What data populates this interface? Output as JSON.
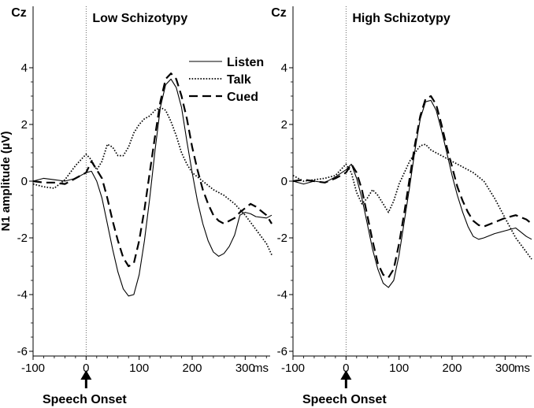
{
  "chart_data": [
    {
      "type": "line",
      "title": "Low Schizotypy",
      "electrode": "Cz",
      "xlabel": "ms",
      "ylabel": "N1 amplitude (µV)",
      "xlim": [
        -100,
        350
      ],
      "ylim": [
        -6.3,
        5
      ],
      "x_ticks": [
        -100,
        0,
        100,
        200,
        300
      ],
      "y_ticks": [
        -6,
        -4,
        -2,
        0,
        2,
        4
      ],
      "annotation": "Speech Onset",
      "legend": {
        "position": "top-right",
        "entries": [
          "Listen",
          "Talk",
          "Cued"
        ]
      },
      "series": [
        {
          "name": "Listen",
          "style": "solid",
          "x": [
            -100,
            -80,
            -60,
            -40,
            -20,
            0,
            10,
            20,
            30,
            40,
            50,
            60,
            70,
            80,
            90,
            100,
            110,
            120,
            130,
            140,
            150,
            160,
            170,
            180,
            190,
            200,
            210,
            220,
            230,
            240,
            250,
            260,
            270,
            280,
            290,
            300,
            310,
            320,
            340,
            350
          ],
          "y": [
            0.0,
            0.1,
            0.05,
            0.0,
            0.1,
            0.3,
            0.35,
            0.0,
            -0.6,
            -1.5,
            -2.4,
            -3.2,
            -3.8,
            -4.05,
            -4.0,
            -3.3,
            -2.1,
            -0.6,
            1.1,
            2.6,
            3.4,
            3.6,
            3.3,
            2.6,
            1.4,
            0.3,
            -0.7,
            -1.5,
            -2.1,
            -2.5,
            -2.65,
            -2.55,
            -2.3,
            -1.9,
            -1.2,
            -1.1,
            -1.15,
            -1.25,
            -1.3,
            -1.2
          ]
        },
        {
          "name": "Talk",
          "style": "dotted",
          "x": [
            -100,
            -80,
            -60,
            -40,
            -20,
            0,
            10,
            20,
            30,
            40,
            50,
            60,
            70,
            80,
            90,
            100,
            110,
            120,
            130,
            140,
            150,
            160,
            170,
            180,
            190,
            200,
            220,
            240,
            260,
            280,
            300,
            320,
            340,
            350
          ],
          "y": [
            -0.1,
            -0.2,
            -0.25,
            0.05,
            0.55,
            0.95,
            0.75,
            0.4,
            0.7,
            1.3,
            1.2,
            0.9,
            0.9,
            1.2,
            1.7,
            2.0,
            2.2,
            2.3,
            2.5,
            2.6,
            2.5,
            2.1,
            1.6,
            1.0,
            0.6,
            0.3,
            0.0,
            -0.3,
            -0.5,
            -0.8,
            -1.2,
            -1.7,
            -2.2,
            -2.6
          ]
        },
        {
          "name": "Cued",
          "style": "dashed",
          "x": [
            -100,
            -80,
            -60,
            -40,
            -20,
            0,
            10,
            20,
            30,
            40,
            50,
            60,
            70,
            80,
            90,
            100,
            110,
            120,
            130,
            140,
            150,
            160,
            170,
            180,
            190,
            200,
            210,
            220,
            230,
            240,
            250,
            260,
            270,
            280,
            290,
            300,
            310,
            320,
            340,
            350
          ],
          "y": [
            0.0,
            -0.05,
            -0.05,
            -0.1,
            0.1,
            0.3,
            0.7,
            0.4,
            0.1,
            -0.6,
            -1.4,
            -2.1,
            -2.7,
            -3.0,
            -2.9,
            -2.1,
            -1.0,
            0.3,
            1.6,
            2.8,
            3.6,
            3.8,
            3.6,
            3.0,
            2.2,
            1.2,
            0.4,
            -0.3,
            -0.8,
            -1.2,
            -1.4,
            -1.5,
            -1.4,
            -1.3,
            -1.1,
            -0.95,
            -0.8,
            -0.9,
            -1.2,
            -1.5
          ]
        }
      ]
    },
    {
      "type": "line",
      "title": "High Schizotypy",
      "electrode": "Cz",
      "xlabel": "ms",
      "ylabel": "",
      "xlim": [
        -100,
        350
      ],
      "ylim": [
        -6.3,
        5
      ],
      "x_ticks": [
        -100,
        0,
        100,
        200,
        300
      ],
      "y_ticks": [
        -6,
        -4,
        -2,
        0,
        2,
        4
      ],
      "annotation": "Speech Onset",
      "legend": {
        "position": "",
        "entries": []
      },
      "series": [
        {
          "name": "Listen",
          "style": "solid",
          "x": [
            -100,
            -80,
            -60,
            -40,
            -20,
            0,
            10,
            20,
            30,
            40,
            50,
            60,
            70,
            80,
            90,
            100,
            110,
            120,
            130,
            140,
            150,
            160,
            170,
            180,
            190,
            200,
            210,
            220,
            230,
            240,
            250,
            260,
            280,
            300,
            320,
            340,
            350
          ],
          "y": [
            0.0,
            -0.1,
            0.0,
            -0.05,
            0.15,
            0.4,
            0.6,
            0.1,
            -0.6,
            -1.5,
            -2.4,
            -3.1,
            -3.6,
            -3.75,
            -3.5,
            -2.6,
            -1.4,
            -0.2,
            1.1,
            2.2,
            2.8,
            2.85,
            2.5,
            1.8,
            1.0,
            0.2,
            -0.5,
            -1.1,
            -1.6,
            -1.95,
            -2.05,
            -2.0,
            -1.85,
            -1.75,
            -1.65,
            -1.95,
            -2.05
          ]
        },
        {
          "name": "Talk",
          "style": "dotted",
          "x": [
            -100,
            -80,
            -60,
            -40,
            -20,
            0,
            10,
            20,
            30,
            40,
            50,
            60,
            70,
            80,
            90,
            100,
            110,
            120,
            130,
            140,
            150,
            160,
            170,
            180,
            190,
            200,
            220,
            240,
            260,
            280,
            300,
            320,
            340,
            350
          ],
          "y": [
            0.2,
            0.0,
            0.05,
            0.1,
            0.2,
            0.6,
            0.3,
            -0.4,
            -0.8,
            -0.6,
            -0.3,
            -0.5,
            -0.8,
            -1.1,
            -0.7,
            -0.1,
            0.3,
            0.7,
            1.0,
            1.25,
            1.3,
            1.1,
            1.0,
            0.9,
            0.8,
            0.7,
            0.5,
            0.3,
            0.0,
            -0.6,
            -1.3,
            -2.0,
            -2.5,
            -2.75
          ]
        },
        {
          "name": "Cued",
          "style": "dashed",
          "x": [
            -100,
            -80,
            -60,
            -40,
            -20,
            0,
            10,
            20,
            30,
            40,
            50,
            60,
            70,
            80,
            90,
            100,
            110,
            120,
            130,
            140,
            150,
            160,
            170,
            180,
            190,
            200,
            210,
            220,
            230,
            240,
            250,
            260,
            280,
            300,
            320,
            340,
            350
          ],
          "y": [
            0.0,
            0.05,
            0.0,
            -0.05,
            0.1,
            0.3,
            0.6,
            0.3,
            -0.3,
            -1.2,
            -2.1,
            -2.9,
            -3.3,
            -3.4,
            -3.1,
            -2.2,
            -1.1,
            0.1,
            1.3,
            2.3,
            2.9,
            3.0,
            2.7,
            2.0,
            1.2,
            0.5,
            -0.2,
            -0.7,
            -1.1,
            -1.4,
            -1.55,
            -1.6,
            -1.45,
            -1.3,
            -1.2,
            -1.35,
            -1.5
          ]
        }
      ]
    }
  ]
}
